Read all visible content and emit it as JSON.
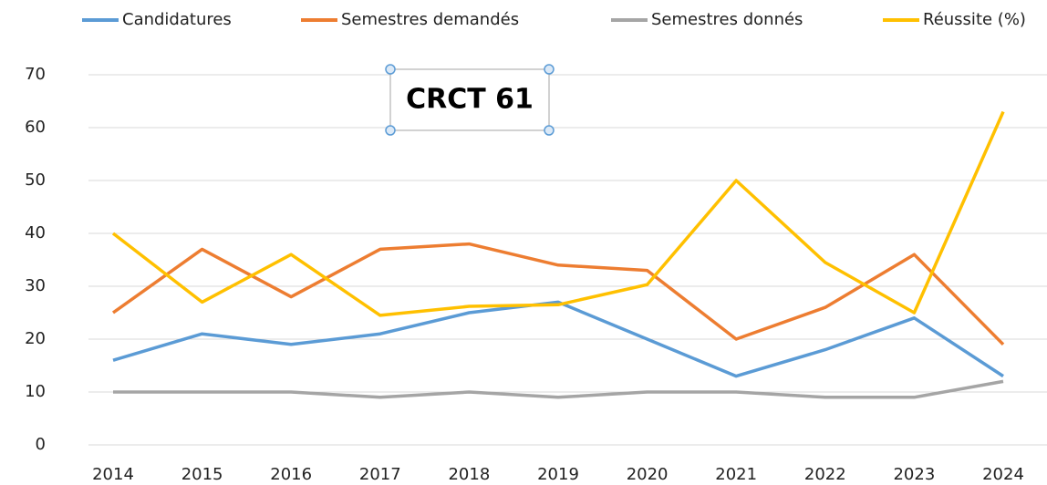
{
  "chart_data": {
    "type": "line",
    "title": "CRCT 61",
    "categories": [
      "2014",
      "2015",
      "2016",
      "2017",
      "2018",
      "2019",
      "2020",
      "2021",
      "2022",
      "2023",
      "2024"
    ],
    "series": [
      {
        "name": "Candidatures",
        "color": "#5b9bd5",
        "values": [
          16,
          21,
          19,
          21,
          25,
          27,
          20,
          13,
          18,
          24,
          13
        ]
      },
      {
        "name": "Semestres demandés",
        "color": "#ed7d31",
        "values": [
          25,
          37,
          28,
          37,
          38,
          34,
          33,
          20,
          26,
          36,
          19
        ]
      },
      {
        "name": "Semestres donnés",
        "color": "#a5a5a5",
        "values": [
          10,
          10,
          10,
          9,
          10,
          9,
          10,
          10,
          9,
          9,
          12
        ]
      },
      {
        "name": "Réussite (%)",
        "color": "#ffc000",
        "values": [
          40,
          27,
          36,
          24.5,
          26.2,
          26.5,
          30.3,
          50,
          34.5,
          25,
          63
        ]
      }
    ],
    "ylim": [
      0,
      70
    ],
    "yticks": [
      0,
      10,
      20,
      30,
      40,
      50,
      60,
      70
    ],
    "grid": true,
    "legend": "top"
  }
}
